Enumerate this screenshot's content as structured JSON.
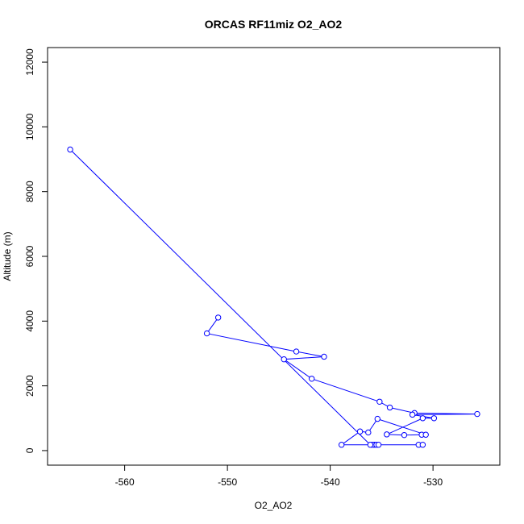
{
  "chart_data": {
    "type": "line",
    "title": "ORCAS RF11miz O2_AO2",
    "xlabel": "O2_AO2",
    "ylabel": "Altitude (m)",
    "xlim": [
      -567.5,
      -523.5
    ],
    "ylim": [
      -450,
      12450
    ],
    "xticks": [
      -560,
      -550,
      -540,
      -530
    ],
    "yticks": [
      0,
      2000,
      4000,
      6000,
      8000,
      10000,
      12000
    ],
    "grid": false,
    "legend": "none",
    "series": [
      {
        "color": "#0000ff",
        "marker": "open-circle",
        "points": [
          [
            -550.9,
            4110
          ],
          [
            -552.0,
            3620
          ],
          [
            -543.3,
            3060
          ],
          [
            -540.6,
            2900
          ],
          [
            -544.5,
            2820
          ],
          [
            -541.8,
            2220
          ],
          [
            -535.2,
            1510
          ],
          [
            -534.2,
            1330
          ],
          [
            -531.8,
            1160
          ],
          [
            -525.7,
            1130
          ],
          [
            -532.0,
            1110
          ],
          [
            -529.9,
            1000
          ],
          [
            -531.0,
            1000
          ],
          [
            -534.5,
            500
          ],
          [
            -532.8,
            480
          ],
          [
            -531.1,
            490
          ],
          [
            -530.7,
            490
          ],
          [
            -535.4,
            980
          ],
          [
            -536.3,
            560
          ],
          [
            -537.1,
            590
          ],
          [
            -538.9,
            180
          ],
          [
            -535.7,
            180
          ],
          [
            -535.9,
            180
          ],
          [
            -535.5,
            180
          ],
          [
            -535.3,
            180
          ],
          [
            -531.4,
            180
          ],
          [
            -531.0,
            180
          ],
          [
            -536.1,
            180
          ],
          [
            -565.3,
            9300
          ]
        ]
      }
    ]
  }
}
